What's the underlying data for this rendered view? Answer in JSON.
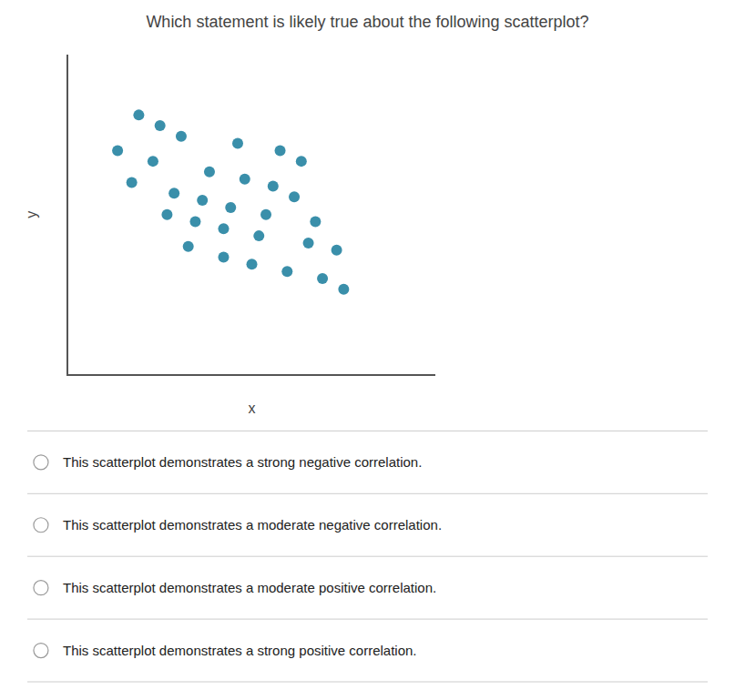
{
  "chart_data": {
    "type": "scatter",
    "title": "Which statement is likely true about the following scatterplot?",
    "xlabel": "x",
    "ylabel": "y",
    "x": [
      1.8,
      2.1,
      2.4,
      3.2,
      3.8,
      4.1,
      1.5,
      2.0,
      2.8,
      3.3,
      3.7,
      4.0,
      1.7,
      2.3,
      2.7,
      3.1,
      3.6,
      4.3,
      2.2,
      2.6,
      3.0,
      3.5,
      4.2,
      4.6,
      2.5,
      3.0,
      3.4,
      3.9,
      4.4,
      4.7
    ],
    "values": [
      7.8,
      7.5,
      7.2,
      7.0,
      6.8,
      6.5,
      6.8,
      6.5,
      6.2,
      6.0,
      5.8,
      5.5,
      5.9,
      5.6,
      5.4,
      5.2,
      5.0,
      4.8,
      5.0,
      4.8,
      4.6,
      4.4,
      4.2,
      4.0,
      4.1,
      3.8,
      3.6,
      3.4,
      3.2,
      2.9
    ],
    "color": "#3a8faa",
    "xlim": [
      0.8,
      6.0
    ],
    "ylim": [
      0.5,
      9.5
    ],
    "tick_labels": false,
    "grid": false,
    "annotations": [
      "This scatterplot demonstrates a strong negative correlation.",
      "This scatterplot demonstrates a moderate negative correlation.",
      "This scatterplot demonstrates a moderate positive correlation.",
      "This scatterplot demonstrates a strong positive correlation."
    ]
  }
}
